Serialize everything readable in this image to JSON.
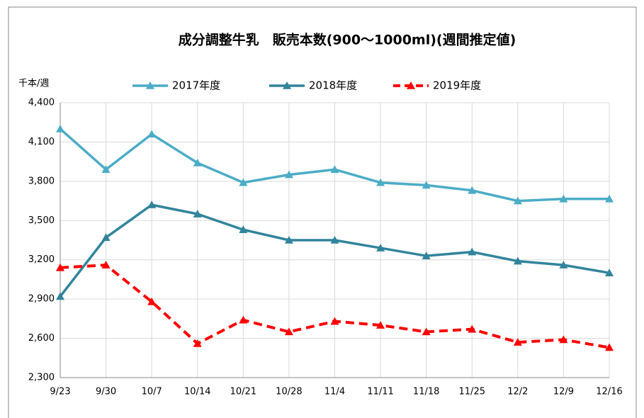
{
  "chart_data": {
    "type": "line",
    "title": "成分調整牛乳　販売本数(900～1000ml)(週間推定値)",
    "y_label": "千本/週",
    "categories": [
      "9/23",
      "9/30",
      "10/7",
      "10/14",
      "10/21",
      "10/28",
      "11/4",
      "11/11",
      "11/18",
      "11/25",
      "12/2",
      "12/9",
      "12/16"
    ],
    "series": [
      {
        "name": "2017年度",
        "color": "#4bacc6",
        "dashed": false,
        "values": [
          4200,
          3890,
          4160,
          3940,
          3790,
          3850,
          3890,
          3790,
          3770,
          3730,
          3650,
          3665,
          3665
        ]
      },
      {
        "name": "2018年度",
        "color": "#31849b",
        "dashed": false,
        "values": [
          2920,
          3370,
          3620,
          3550,
          3430,
          3350,
          3350,
          3290,
          3230,
          3260,
          3190,
          3160,
          3100
        ]
      },
      {
        "name": "2019年度",
        "color": "#ff0000",
        "dashed": true,
        "values": [
          3140,
          3160,
          2880,
          2560,
          2740,
          2650,
          2730,
          2700,
          2650,
          2670,
          2570,
          2590,
          2530
        ]
      }
    ],
    "ylim": [
      2300,
      4400
    ],
    "yticks": [
      {
        "value": 2300,
        "label": "2,300"
      },
      {
        "value": 2600,
        "label": "2,600"
      },
      {
        "value": 2900,
        "label": "2,900"
      },
      {
        "value": 3200,
        "label": "3,200"
      },
      {
        "value": 3500,
        "label": "3,500"
      },
      {
        "value": 3800,
        "label": "3,800"
      },
      {
        "value": 4100,
        "label": "4,100"
      },
      {
        "value": 4400,
        "label": "4,400"
      }
    ],
    "grid": true,
    "legend": "top",
    "marker": "triangle"
  }
}
